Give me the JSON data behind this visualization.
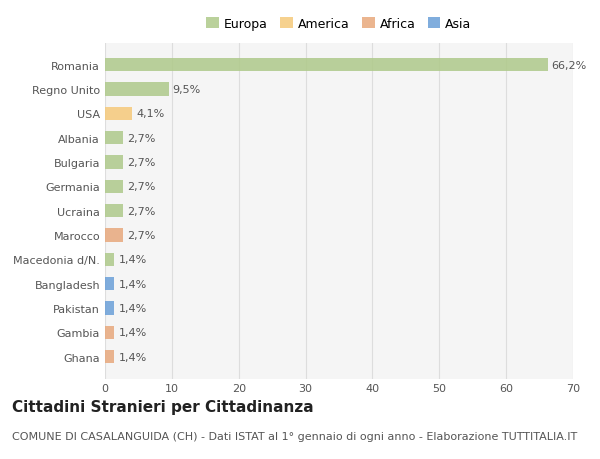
{
  "categories": [
    "Ghana",
    "Gambia",
    "Pakistan",
    "Bangladesh",
    "Macedonia d/N.",
    "Marocco",
    "Ucraina",
    "Germania",
    "Bulgaria",
    "Albania",
    "USA",
    "Regno Unito",
    "Romania"
  ],
  "values": [
    1.4,
    1.4,
    1.4,
    1.4,
    1.4,
    2.7,
    2.7,
    2.7,
    2.7,
    2.7,
    4.1,
    9.5,
    66.2
  ],
  "labels": [
    "1,4%",
    "1,4%",
    "1,4%",
    "1,4%",
    "1,4%",
    "2,7%",
    "2,7%",
    "2,7%",
    "2,7%",
    "2,7%",
    "4,1%",
    "9,5%",
    "66,2%"
  ],
  "colors": [
    "#e8a87c",
    "#e8a87c",
    "#6a9fd8",
    "#6a9fd8",
    "#aec98a",
    "#e8a87c",
    "#aec98a",
    "#aec98a",
    "#aec98a",
    "#aec98a",
    "#f5c97a",
    "#aec98a",
    "#aec98a"
  ],
  "legend_labels": [
    "Europa",
    "America",
    "Africa",
    "Asia"
  ],
  "legend_colors": [
    "#aec98a",
    "#f5c97a",
    "#e8a87c",
    "#6a9fd8"
  ],
  "title": "Cittadini Stranieri per Cittadinanza",
  "subtitle": "COMUNE DI CASALANGUIDA (CH) - Dati ISTAT al 1° gennaio di ogni anno - Elaborazione TUTTITALIA.IT",
  "xlim": [
    0,
    70
  ],
  "xticks": [
    0,
    10,
    20,
    30,
    40,
    50,
    60,
    70
  ],
  "background_color": "#ffffff",
  "plot_bg_color": "#f5f5f5",
  "grid_color": "#dddddd",
  "bar_height": 0.55,
  "title_fontsize": 11,
  "subtitle_fontsize": 8,
  "label_fontsize": 8,
  "tick_fontsize": 8,
  "legend_fontsize": 9
}
